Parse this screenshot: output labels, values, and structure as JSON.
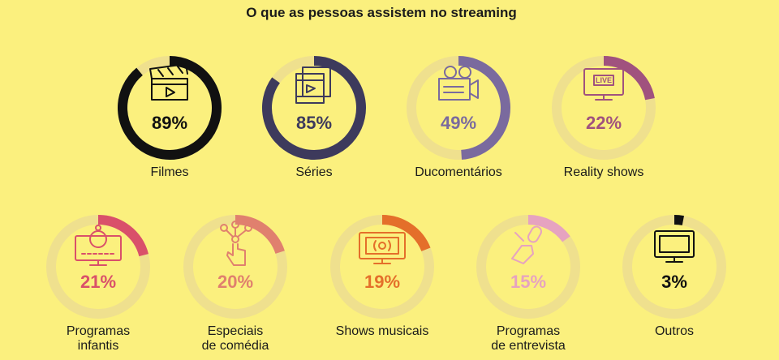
{
  "chart_data": {
    "type": "donut",
    "title": "O que as pessoas assistem no streaming",
    "track_color": "#efe08e",
    "items": [
      {
        "label": [
          "Filmes"
        ],
        "value": 89,
        "display": "89%",
        "color": "#111111",
        "icon": "clapperboard-icon"
      },
      {
        "label": [
          "Séries"
        ],
        "value": 85,
        "display": "85%",
        "color": "#3d3a5c",
        "icon": "film-frames-icon"
      },
      {
        "label": [
          "Ducomentários"
        ],
        "value": 49,
        "display": "49%",
        "color": "#7a6a9e",
        "icon": "movie-camera-icon"
      },
      {
        "label": [
          "Reality shows"
        ],
        "value": 22,
        "display": "22%",
        "color": "#a0527e",
        "icon": "live-tv-icon"
      },
      {
        "label": [
          "Programas",
          "infantis"
        ],
        "value": 21,
        "display": "21%",
        "color": "#d9506a",
        "icon": "kids-tv-icon"
      },
      {
        "label": [
          "Especiais",
          "de comédia"
        ],
        "value": 20,
        "display": "20%",
        "color": "#e0806e",
        "icon": "hand-touch-icon"
      },
      {
        "label": [
          "Shows musicais"
        ],
        "value": 19,
        "display": "19%",
        "color": "#e46f2a",
        "icon": "music-tv-icon"
      },
      {
        "label": [
          "Programas",
          "de entrevista"
        ],
        "value": 15,
        "display": "15%",
        "color": "#e6a3c0",
        "icon": "microphone-hand-icon"
      },
      {
        "label": [
          "Outros"
        ],
        "value": 3,
        "display": "3%",
        "color": "#111111",
        "icon": "tv-icon"
      }
    ]
  }
}
